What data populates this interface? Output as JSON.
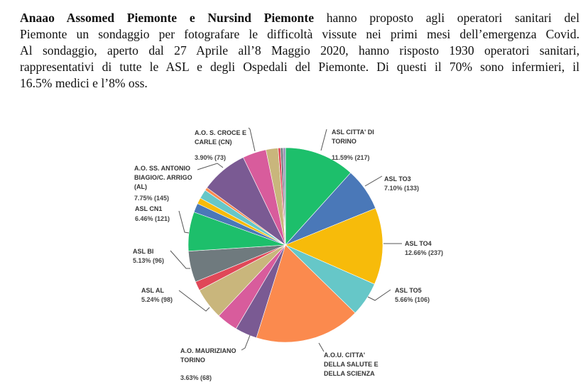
{
  "text": {
    "bold_intro": "Anaao Assomed Piemonte e Nursind Piemonte",
    "line1_rest": " hanno proposto agli operatori sanitari del",
    "line2": "Piemonte un sondaggio per fotografare le difficoltà vissute nei primi mesi dell’emergenza Covid.",
    "line3": "Al sondaggio, aperto dal 27 Aprile all’8 Maggio 2020, hanno risposto 1930 operatori sanitari,",
    "line4": "rappresentativi di tutte le ASL e degli Ospedali del Piemonte. Di questi il 70% sono infermieri, il",
    "line5": "16.5% medici e l’8% oss."
  },
  "chart_data": {
    "type": "pie",
    "start": "top",
    "direction": "clockwise",
    "slices": [
      {
        "label": "ASL CITTA' DI TORINO",
        "value": 11.59,
        "count": 217,
        "color": "#1dbf6b"
      },
      {
        "label": "ASL TO3",
        "value": 7.1,
        "count": 133,
        "color": "#4a78b8"
      },
      {
        "label": "ASL TO4",
        "value": 12.66,
        "count": 237,
        "color": "#f7bb0a"
      },
      {
        "label": "ASL TO5",
        "value": 5.66,
        "count": 106,
        "color": "#66c7c8"
      },
      {
        "label": "A.O.U. CITTA' DELLA SALUTE E DELLA SCIENZA",
        "value": 17.4,
        "color": "#fb8a4e"
      },
      {
        "label": "A.O. MAURIZIANO TORINO",
        "value": 3.63,
        "count": 68,
        "color": "#7a5a93"
      },
      {
        "label": "",
        "value": 3.5,
        "color": "#d85c9c"
      },
      {
        "label": "ASL AL",
        "value": 5.24,
        "count": 98,
        "color": "#c9b67c"
      },
      {
        "label": "",
        "value": 1.5,
        "color": "#e04858"
      },
      {
        "label": "ASL BI",
        "value": 5.13,
        "count": 96,
        "color": "#6f7a7e"
      },
      {
        "label": "ASL CN1",
        "value": 6.46,
        "count": 121,
        "color": "#1dbf6b"
      },
      {
        "label": "",
        "value": 1.5,
        "color": "#4a78b8"
      },
      {
        "label": "",
        "value": 1.0,
        "color": "#f7bb0a"
      },
      {
        "label": "",
        "value": 1.5,
        "color": "#66c7c8"
      },
      {
        "label": "",
        "value": 0.5,
        "color": "#fb8a4e"
      },
      {
        "label": "A.O. SS. ANTONIO BIAGIO/C. ARRIGO (AL)",
        "value": 7.75,
        "count": 145,
        "color": "#7a5a93"
      },
      {
        "label": "A.O. S. CROCE E CARLE (CN)",
        "value": 3.9,
        "count": 73,
        "color": "#d85c9c"
      },
      {
        "label": "",
        "value": 2.0,
        "color": "#c9b67c"
      },
      {
        "label": "",
        "value": 0.4,
        "color": "#e04858"
      },
      {
        "label": "",
        "value": 0.4,
        "color": "#6f7a7e"
      },
      {
        "label": "",
        "value": 0.4,
        "color": "#9a8fb8"
      }
    ],
    "labels": {
      "citta_torino_name": "ASL CITTA' DI\nTORINO",
      "citta_torino_pct": "11.59% (217)",
      "to3_name": "ASL TO3",
      "to3_pct": "7.10% (133)",
      "to4_name": "ASL TO4",
      "to4_pct": "12.66% (237)",
      "to5_name": "ASL TO5",
      "to5_pct": "5.66% (106)",
      "aou_name": "A.O.U. CITTA'\nDELLA SALUTE E\nDELLA SCIENZA",
      "mauriziano_name": "A.O. MAURIZIANO\nTORINO",
      "mauriziano_pct": "3.63% (68)",
      "al_name": "ASL AL",
      "al_pct": "5.24% (98)",
      "bi_name": "ASL BI",
      "bi_pct": "5.13% (96)",
      "cn1_name": "ASL CN1",
      "cn1_pct": "6.46% (121)",
      "overlap_pct": "7.75% (145)",
      "antonio_name": "A.O. SS. ANTONIO\nBIAGIO/C. ARRIGO\n(AL)",
      "croce_name": "A.O. S. CROCE E\nCARLE (CN)",
      "croce_pct": "3.90% (73)"
    }
  }
}
